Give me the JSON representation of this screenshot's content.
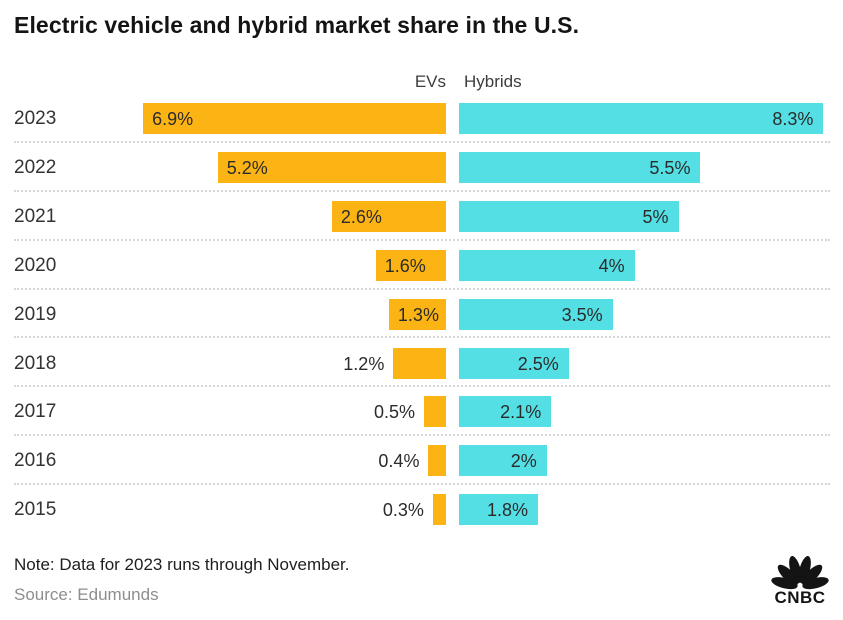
{
  "title": "Electric vehicle and hybrid market share in the U.S.",
  "chart_data": {
    "type": "bar",
    "orientation": "horizontal-diverging",
    "value_unit": "%",
    "max_value": 8.3,
    "grid": "dotted-row-separators",
    "legend_position": "column-headers-top",
    "categories": [
      "2023",
      "2022",
      "2021",
      "2020",
      "2019",
      "2018",
      "2017",
      "2016",
      "2015"
    ],
    "series": [
      {
        "name": "EVs",
        "color": "#FCB415",
        "direction": "left",
        "values": [
          6.9,
          5.2,
          2.6,
          1.6,
          1.3,
          1.2,
          0.5,
          0.4,
          0.3
        ],
        "labels": [
          "6.9%",
          "5.2%",
          "2.6%",
          "1.6%",
          "1.3%",
          "1.2%",
          "0.5%",
          "0.4%",
          "0.3%"
        ]
      },
      {
        "name": "Hybrids",
        "color": "#54DFE4",
        "direction": "right",
        "values": [
          8.3,
          5.5,
          5,
          4,
          3.5,
          2.5,
          2.1,
          2,
          1.8
        ],
        "labels": [
          "8.3%",
          "5.5%",
          "5%",
          "4%",
          "3.5%",
          "2.5%",
          "2.1%",
          "2%",
          "1.8%"
        ]
      }
    ]
  },
  "note": "Note: Data for 2023 runs through November.",
  "source": "Source: Edumunds",
  "logo_text": "CNBC",
  "text_colors": {
    "title": "#141414",
    "labels": "#2b2b2b",
    "note": "#1e1e1e",
    "source": "#8e8e8e"
  }
}
